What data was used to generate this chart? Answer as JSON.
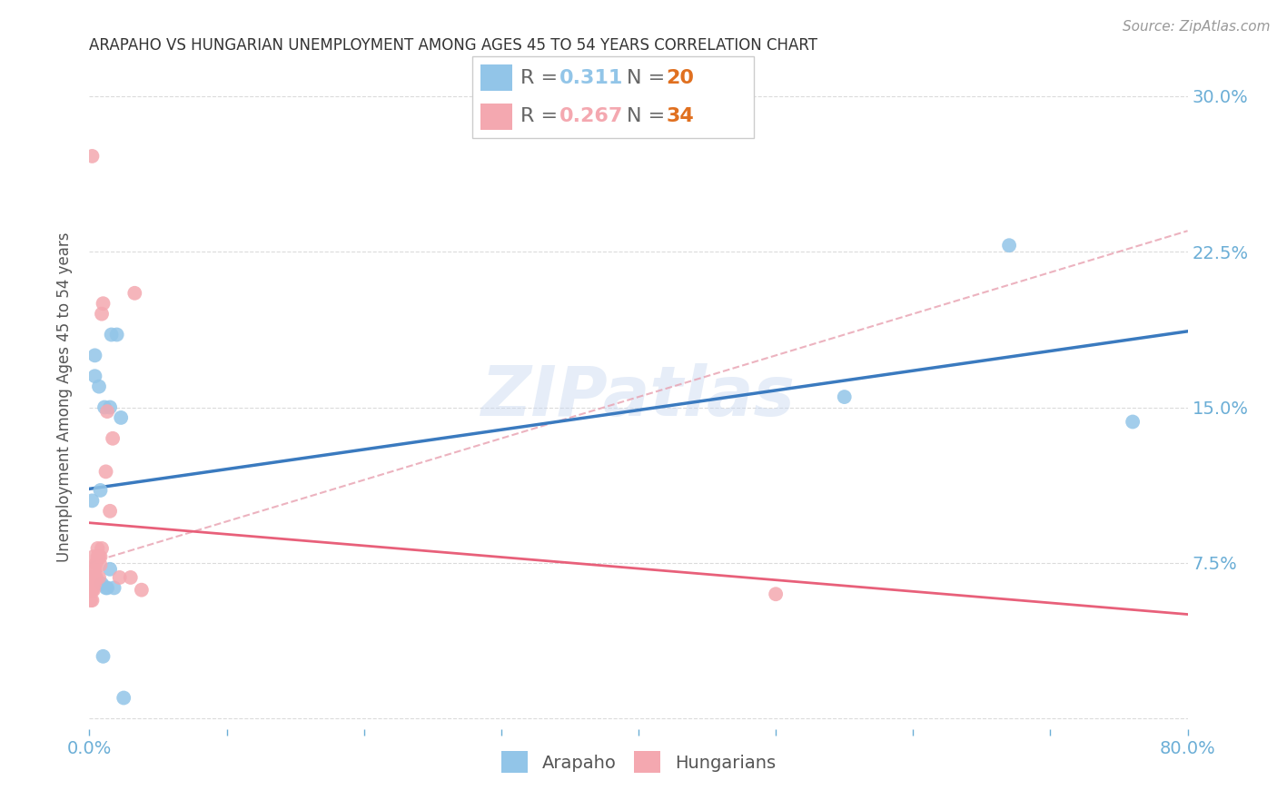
{
  "title": "ARAPAHO VS HUNGARIAN UNEMPLOYMENT AMONG AGES 45 TO 54 YEARS CORRELATION CHART",
  "source": "Source: ZipAtlas.com",
  "ylabel": "Unemployment Among Ages 45 to 54 years",
  "xlim": [
    0.0,
    0.8
  ],
  "ylim": [
    -0.005,
    0.315
  ],
  "yticks": [
    0.0,
    0.075,
    0.15,
    0.225,
    0.3
  ],
  "ytick_labels": [
    "",
    "7.5%",
    "15.0%",
    "22.5%",
    "30.0%"
  ],
  "xticks": [
    0.0,
    0.1,
    0.2,
    0.3,
    0.4,
    0.5,
    0.6,
    0.7,
    0.8
  ],
  "xtick_labels": [
    "0.0%",
    "",
    "",
    "",
    "",
    "",
    "",
    "",
    "80.0%"
  ],
  "arapaho_color": "#92c5e8",
  "hungarian_color": "#f4a8b0",
  "line_blue": "#3a7abf",
  "line_pink": "#e8607a",
  "line_pink_dashed": "#e8a0b0",
  "legend_R_arapaho": "0.311",
  "legend_N_arapaho": "20",
  "legend_R_hungarian": "0.267",
  "legend_N_hungarian": "34",
  "legend_R_color_blue": "#92c5e8",
  "legend_R_color_pink": "#f4a8b0",
  "legend_N_color": "#e07020",
  "background_color": "#ffffff",
  "arapaho_x": [
    0.002,
    0.004,
    0.004,
    0.007,
    0.008,
    0.009,
    0.01,
    0.011,
    0.012,
    0.013,
    0.015,
    0.015,
    0.016,
    0.018,
    0.02,
    0.023,
    0.025,
    0.55,
    0.67,
    0.76
  ],
  "arapaho_y": [
    0.105,
    0.175,
    0.165,
    0.16,
    0.11,
    0.065,
    0.03,
    0.15,
    0.063,
    0.063,
    0.072,
    0.15,
    0.185,
    0.063,
    0.185,
    0.145,
    0.01,
    0.155,
    0.228,
    0.143
  ],
  "hungarian_x": [
    0.001,
    0.001,
    0.002,
    0.002,
    0.002,
    0.002,
    0.002,
    0.003,
    0.003,
    0.003,
    0.003,
    0.004,
    0.004,
    0.004,
    0.005,
    0.005,
    0.006,
    0.006,
    0.007,
    0.007,
    0.008,
    0.008,
    0.009,
    0.009,
    0.01,
    0.012,
    0.013,
    0.015,
    0.017,
    0.022,
    0.03,
    0.033,
    0.038,
    0.5
  ],
  "hungarian_y": [
    0.057,
    0.062,
    0.057,
    0.062,
    0.062,
    0.068,
    0.271,
    0.062,
    0.065,
    0.072,
    0.078,
    0.065,
    0.068,
    0.072,
    0.068,
    0.075,
    0.078,
    0.082,
    0.068,
    0.078,
    0.074,
    0.078,
    0.082,
    0.195,
    0.2,
    0.119,
    0.148,
    0.1,
    0.135,
    0.068,
    0.068,
    0.205,
    0.062,
    0.06
  ],
  "watermark": "ZIPatlas",
  "title_color": "#333333",
  "axis_color": "#6baed6",
  "title_fontsize": 12,
  "ylabel_fontsize": 12,
  "tick_fontsize": 14,
  "legend_fontsize": 16
}
